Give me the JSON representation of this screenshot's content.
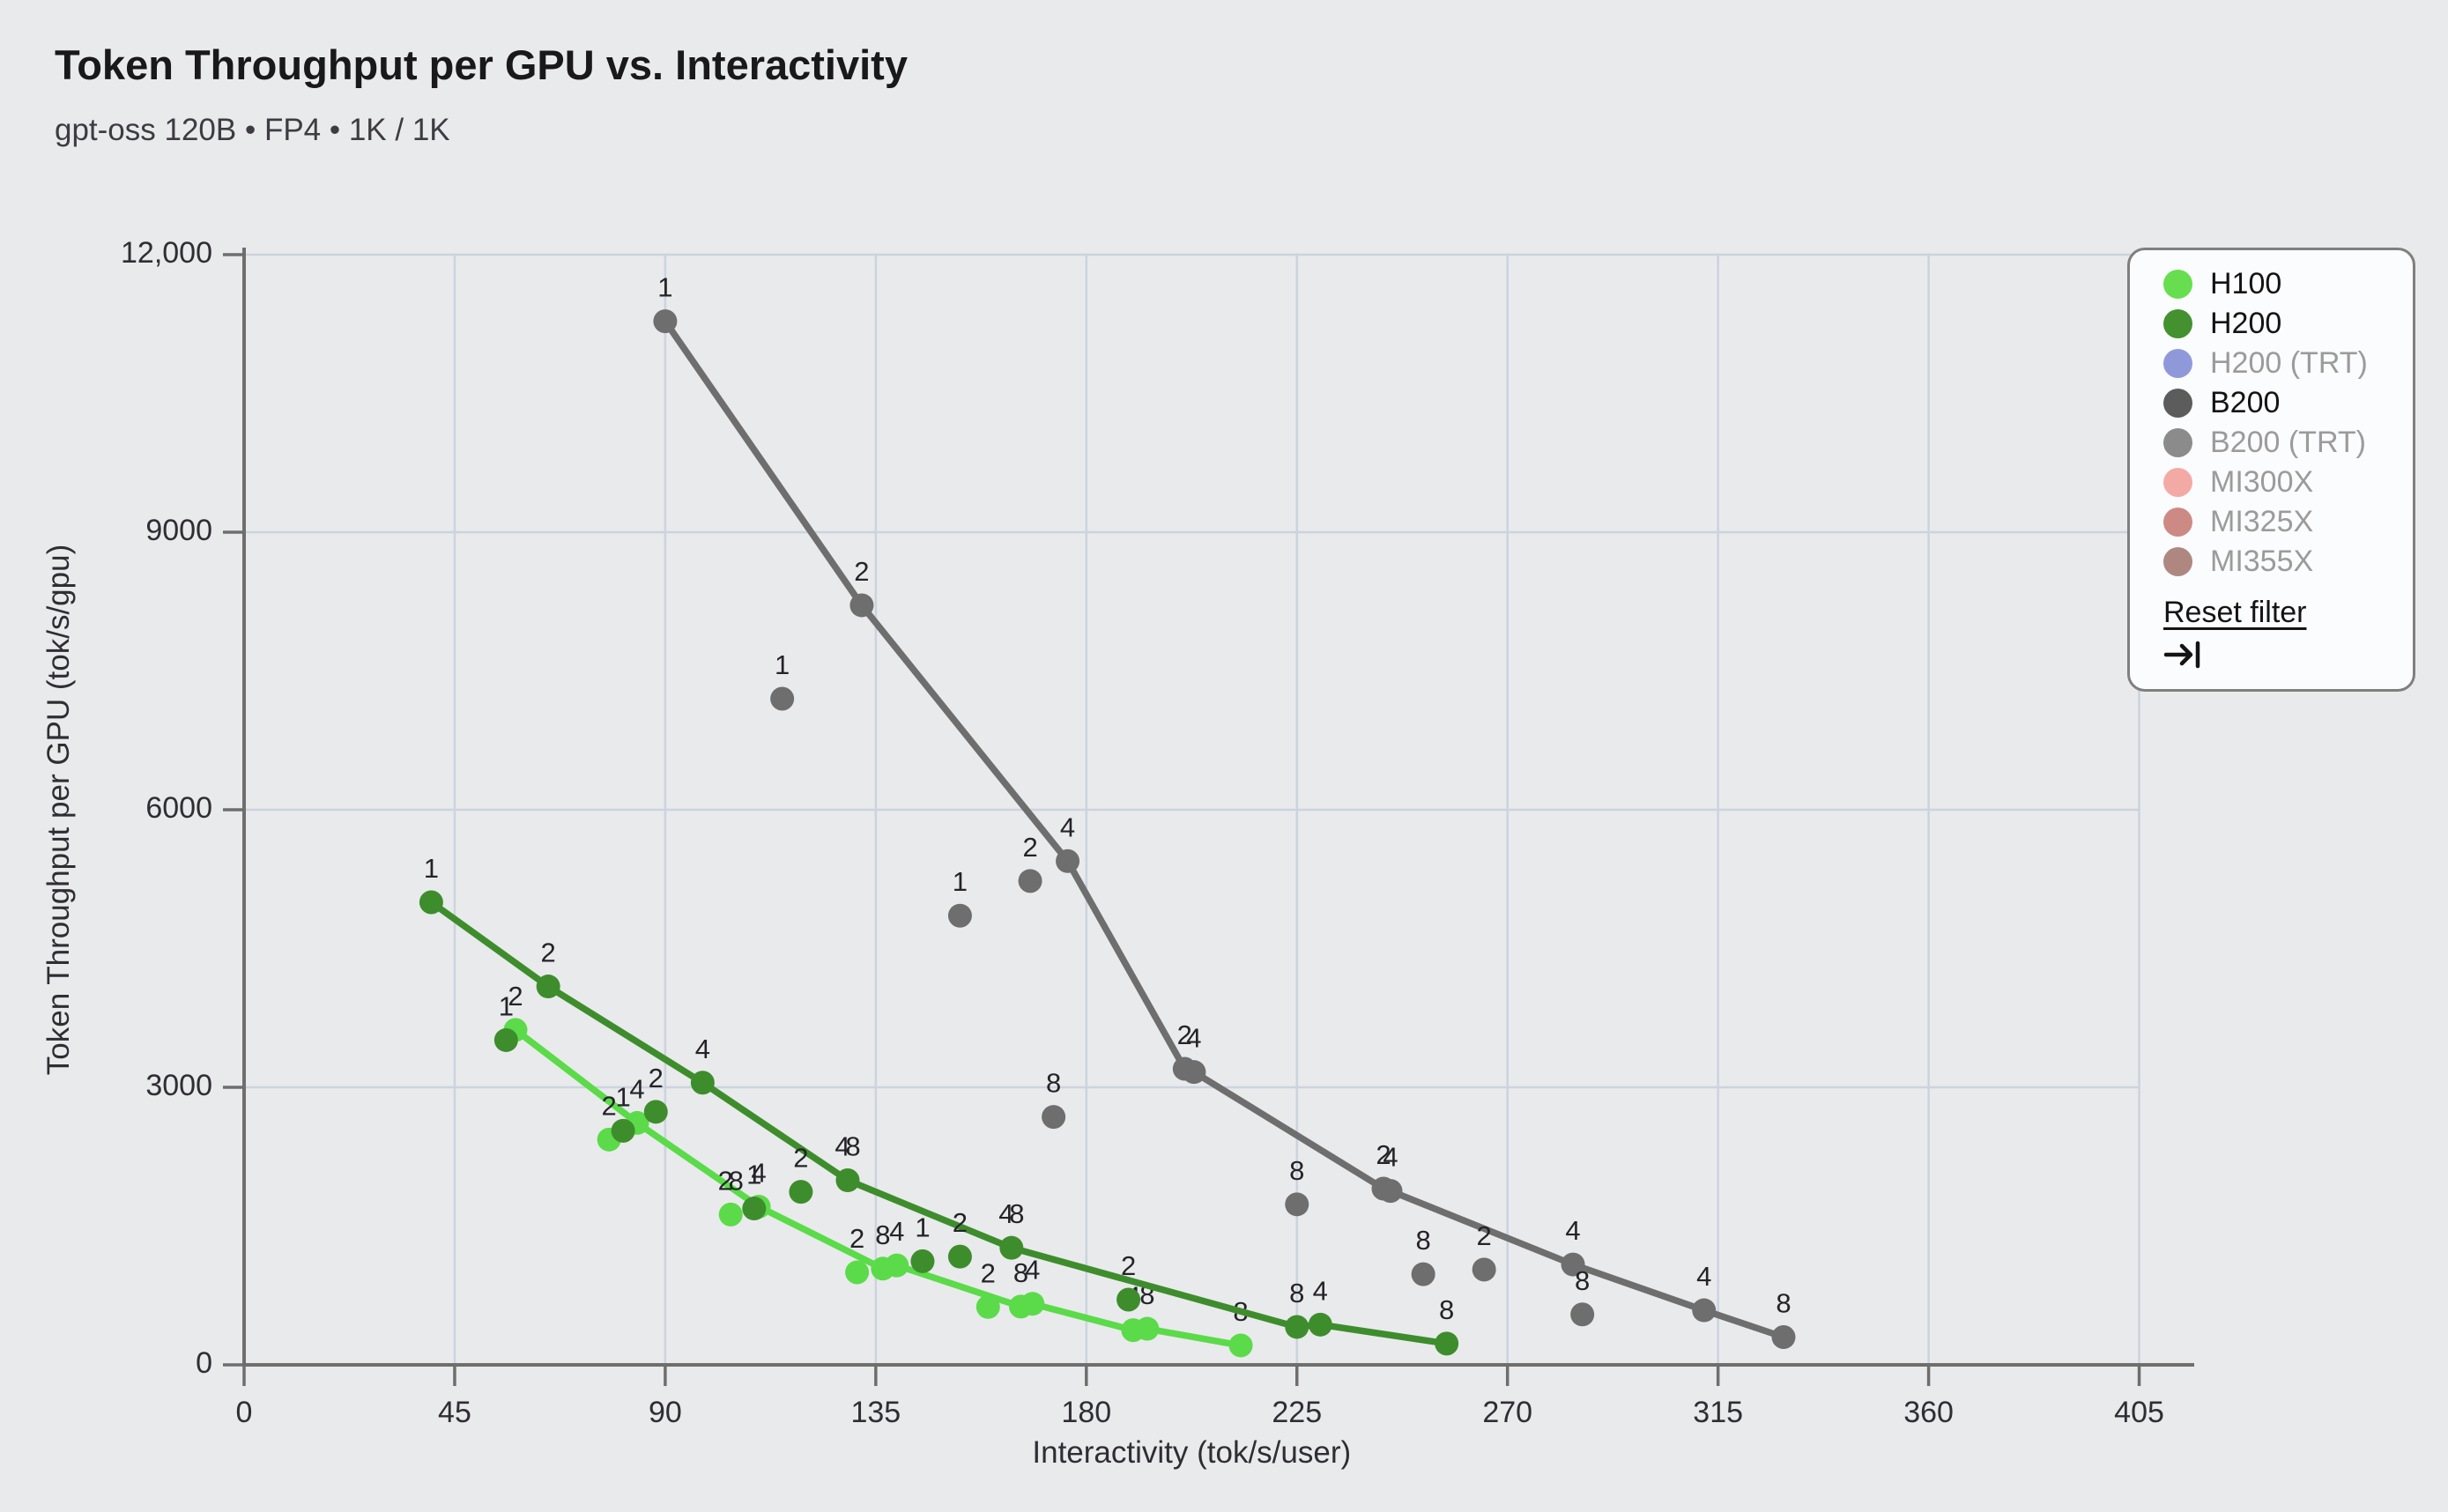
{
  "header": {
    "title": "Token Throughput per GPU vs. Interactivity",
    "subtitle": "gpt-oss 120B • FP4 • 1K / 1K"
  },
  "legend": {
    "reset_label": "Reset filter",
    "items": [
      {
        "id": "h100",
        "label": "H100",
        "color": "#67DE4F",
        "active": true
      },
      {
        "id": "h200",
        "label": "H200",
        "color": "#43912F",
        "active": true
      },
      {
        "id": "h200-trt",
        "label": "H200 (TRT)",
        "color": "#8F99DA",
        "active": false
      },
      {
        "id": "b200",
        "label": "B200",
        "color": "#5C5C5C",
        "active": true
      },
      {
        "id": "b200-trt",
        "label": "B200 (TRT)",
        "color": "#8B8B8B",
        "active": false
      },
      {
        "id": "mi300x",
        "label": "MI300X",
        "color": "#F3AAA5",
        "active": false
      },
      {
        "id": "mi325x",
        "label": "MI325X",
        "color": "#CD8A85",
        "active": false
      },
      {
        "id": "mi355x",
        "label": "MI355X",
        "color": "#AF8781",
        "active": false
      }
    ]
  },
  "chart_data": {
    "type": "scatter",
    "title": "Token Throughput per GPU vs. Interactivity",
    "subtitle": "gpt-oss 120B • FP4 • 1K / 1K",
    "xlabel": "Interactivity (tok/s/user)",
    "ylabel": "Token Throughput per GPU (tok/s/gpu)",
    "xlim": [
      0,
      405
    ],
    "ylim": [
      0,
      12000
    ],
    "grid": true,
    "legend_position": "top-right",
    "xticks": [
      0,
      45,
      90,
      135,
      180,
      225,
      270,
      315,
      360,
      405
    ],
    "yticks": [
      {
        "value": 0,
        "label": "0"
      },
      {
        "value": 3000,
        "label": "3000"
      },
      {
        "value": 6000,
        "label": "6000"
      },
      {
        "value": 9000,
        "label": "9000"
      },
      {
        "value": 12000,
        "label": "12,000"
      }
    ],
    "point_label_meaning": "GPU count per configuration",
    "series": [
      {
        "name": "H100",
        "color": "#5BDB49",
        "line": [
          {
            "x": 58,
            "y": 3620,
            "labels": [
              "2"
            ]
          },
          {
            "x": 84,
            "y": 2615,
            "labels": [
              "4"
            ]
          },
          {
            "x": 110,
            "y": 1710,
            "labels": [
              "4"
            ]
          },
          {
            "x": 136.5,
            "y": 1040,
            "labels": [
              "8"
            ]
          },
          {
            "x": 139.5,
            "y": 1075,
            "labels": [
              "4"
            ]
          },
          {
            "x": 166,
            "y": 630,
            "labels": [
              "8"
            ]
          },
          {
            "x": 168.5,
            "y": 660,
            "labels": [
              "4"
            ]
          },
          {
            "x": 190,
            "y": 375,
            "labels": [
              "4"
            ]
          },
          {
            "x": 193,
            "y": 390,
            "labels": [
              "8"
            ]
          },
          {
            "x": 213,
            "y": 210,
            "labels": [
              "8"
            ]
          }
        ],
        "scatter": [
          {
            "x": 78,
            "y": 2435,
            "labels": [
              "2"
            ]
          },
          {
            "x": 104,
            "y": 1625,
            "labels": [
              "2",
              "8"
            ]
          },
          {
            "x": 131,
            "y": 1000,
            "labels": [
              "2"
            ]
          },
          {
            "x": 159,
            "y": 626,
            "labels": [
              "2"
            ]
          }
        ]
      },
      {
        "name": "H200",
        "color": "#3E8D2D",
        "line": [
          {
            "x": 40,
            "y": 5000,
            "labels": [
              "1"
            ]
          },
          {
            "x": 65,
            "y": 4090,
            "labels": [
              "2"
            ]
          },
          {
            "x": 98,
            "y": 3050,
            "labels": [
              "4"
            ]
          },
          {
            "x": 129,
            "y": 1995,
            "labels": [
              "4",
              "8"
            ]
          },
          {
            "x": 164,
            "y": 1265,
            "labels": [
              "4",
              "8"
            ]
          },
          {
            "x": 225,
            "y": 410,
            "labels": [
              "8"
            ]
          },
          {
            "x": 230,
            "y": 435,
            "labels": [
              "4"
            ]
          },
          {
            "x": 257,
            "y": 230,
            "labels": [
              "8"
            ]
          }
        ],
        "scatter": [
          {
            "x": 56,
            "y": 3510,
            "labels": [
              "1"
            ]
          },
          {
            "x": 81,
            "y": 2530,
            "labels": [
              "1"
            ]
          },
          {
            "x": 88,
            "y": 2735,
            "labels": [
              "2"
            ]
          },
          {
            "x": 109,
            "y": 1690,
            "labels": [
              "1"
            ]
          },
          {
            "x": 119,
            "y": 1870,
            "labels": [
              "2"
            ]
          },
          {
            "x": 145,
            "y": 1120,
            "labels": [
              "1"
            ]
          },
          {
            "x": 153,
            "y": 1170,
            "labels": [
              "2"
            ]
          },
          {
            "x": 189,
            "y": 705,
            "labels": [
              "2"
            ]
          }
        ]
      },
      {
        "name": "B200",
        "color": "#6E6E6E",
        "line": [
          {
            "x": 90,
            "y": 11280,
            "labels": [
              "1"
            ]
          },
          {
            "x": 132,
            "y": 8210,
            "labels": [
              "2"
            ]
          },
          {
            "x": 176,
            "y": 5445,
            "labels": [
              "4"
            ]
          },
          {
            "x": 201,
            "y": 3200,
            "labels": [
              "2"
            ]
          },
          {
            "x": 203,
            "y": 3165,
            "labels": [
              "4"
            ]
          },
          {
            "x": 243.5,
            "y": 1905,
            "labels": [
              "2"
            ]
          },
          {
            "x": 245,
            "y": 1880,
            "labels": [
              "4"
            ]
          },
          {
            "x": 284,
            "y": 1085,
            "labels": [
              "4"
            ]
          },
          {
            "x": 312,
            "y": 590,
            "labels": [
              "4"
            ]
          },
          {
            "x": 329,
            "y": 300,
            "labels": [
              "8"
            ]
          }
        ],
        "scatter": [
          {
            "x": 115,
            "y": 7200,
            "labels": [
              "1"
            ]
          },
          {
            "x": 153,
            "y": 4855,
            "labels": [
              "1"
            ]
          },
          {
            "x": 168,
            "y": 5230,
            "labels": [
              "2"
            ]
          },
          {
            "x": 173,
            "y": 2680,
            "labels": [
              "8"
            ]
          },
          {
            "x": 225,
            "y": 1735,
            "labels": [
              "8"
            ]
          },
          {
            "x": 252,
            "y": 980,
            "labels": [
              "8"
            ]
          },
          {
            "x": 265,
            "y": 1030,
            "labels": [
              "2"
            ]
          },
          {
            "x": 286,
            "y": 545,
            "labels": [
              "8"
            ]
          }
        ]
      }
    ]
  }
}
